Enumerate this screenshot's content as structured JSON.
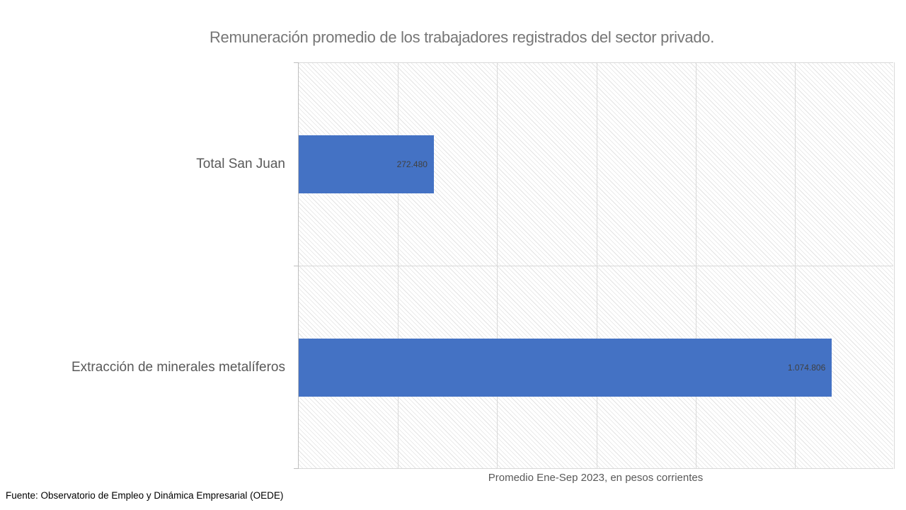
{
  "title": "Remuneración promedio de los trabajadores registrados del sector privado.",
  "chart_data": {
    "type": "bar",
    "orientation": "horizontal",
    "title": "Remuneración promedio de los trabajadores registrados del sector privado.",
    "categories": [
      "Total San Juan",
      "Extracción de minerales metalíferos"
    ],
    "values": [
      272480,
      1074806
    ],
    "value_labels": [
      "272.480",
      "1.074.806"
    ],
    "xlabel": "Promedio Ene-Sep 2023, en pesos corrientes",
    "ylabel": "",
    "xlim": [
      0,
      1200000
    ],
    "grid_interval": 200000,
    "grid": "on",
    "legend": "none",
    "data_labels": "inside-end",
    "bar_color": "#4472C4",
    "gridline_color": "#d9d9d9",
    "plot_area_fill": "light-downward-diagonal-pattern"
  },
  "footer": {
    "source": "Fuente: Observatorio de Empleo y Dinámica Empresarial (OEDE)"
  }
}
